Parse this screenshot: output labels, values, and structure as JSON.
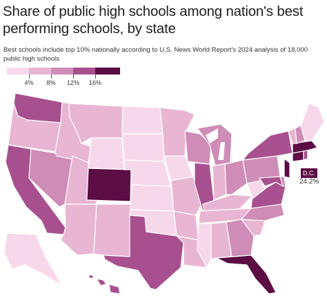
{
  "header": {
    "title": "Share of public high schools among nation's best performing schools, by state",
    "subtitle": "Best schools include top 10% nationally according to U.S. News World Report's 2024 analysis of 18,000 public high schools"
  },
  "legend": {
    "ticks": [
      "4%",
      "8%",
      "12%",
      "16%"
    ],
    "colors": [
      "#f7d8ea",
      "#e8b6d3",
      "#cf8cb6",
      "#a8508f",
      "#5b0d44"
    ]
  },
  "dc": {
    "label": "D.C.",
    "value": "24.2%",
    "color": "#5b0d44"
  },
  "map_colors": {
    "bin1": "#f7d8ea",
    "bin2": "#e8b6d3",
    "bin3": "#cf8cb6",
    "bin4": "#a8508f",
    "bin5": "#5b0d44"
  }
}
